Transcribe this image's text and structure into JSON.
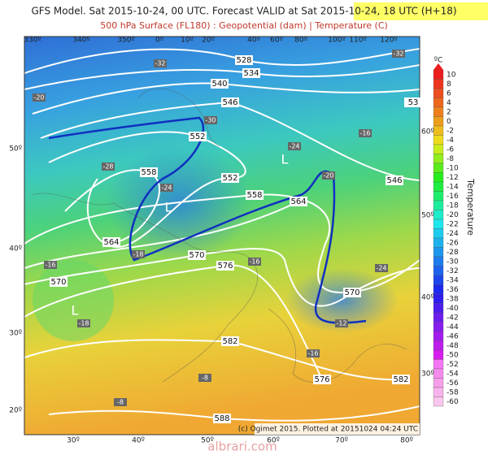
{
  "header": {
    "title": "GFS Model. Sat 2015-10-24, 00 UTC. Forecast VALID at Sat 2015-10-24, 18 UTC (H+18)",
    "subtitle": "500 hPa Surface (FL180) : Geopotential (dam) | Temperature (C)"
  },
  "map": {
    "top_longitudes": [
      "330º",
      "340º",
      "350º",
      "0º",
      "10º",
      "20º",
      "40º",
      "60º",
      "80º",
      "100º",
      "110º",
      "120º"
    ],
    "bottom_longitudes": [
      "30º",
      "40º",
      "50º",
      "60º",
      "70º",
      "80º"
    ],
    "left_latitudes": [
      "50º",
      "40º",
      "30º",
      "20º"
    ],
    "right_latitudes": [
      "60º",
      "50º",
      "40º",
      "30º"
    ],
    "contour_labels": [
      "528",
      "534",
      "540",
      "546",
      "552",
      "558",
      "552",
      "558",
      "564",
      "564",
      "570",
      "576",
      "570",
      "570",
      "582",
      "576",
      "582",
      "588",
      "546",
      "53"
    ],
    "lows": [
      "L",
      "L",
      "L"
    ],
    "temperature_labels": [
      "-32",
      "-32",
      "-30",
      "-28",
      "-24",
      "-24",
      "-20",
      "-24",
      "-18",
      "-16",
      "-20",
      "-16",
      "-18",
      "-16",
      "-12",
      "-8",
      "-8",
      "-16"
    ],
    "credit": "(c) Ogimet 2015. Plotted at 20151024 04:24 UTC"
  },
  "legend": {
    "unit": "ºC",
    "title": "Temperature",
    "labels": [
      "10",
      "8",
      "6",
      "4",
      "2",
      "0",
      "-2",
      "-4",
      "-6",
      "-8",
      "-10",
      "-12",
      "-14",
      "-16",
      "-18",
      "-20",
      "-22",
      "-24",
      "-26",
      "-28",
      "-30",
      "-32",
      "-34",
      "-36",
      "-38",
      "-40",
      "-42",
      "-44",
      "-46",
      "-48",
      "-50",
      "-52",
      "-54",
      "-56",
      "-58",
      "-60"
    ]
  },
  "watermark": "albrari.com"
}
